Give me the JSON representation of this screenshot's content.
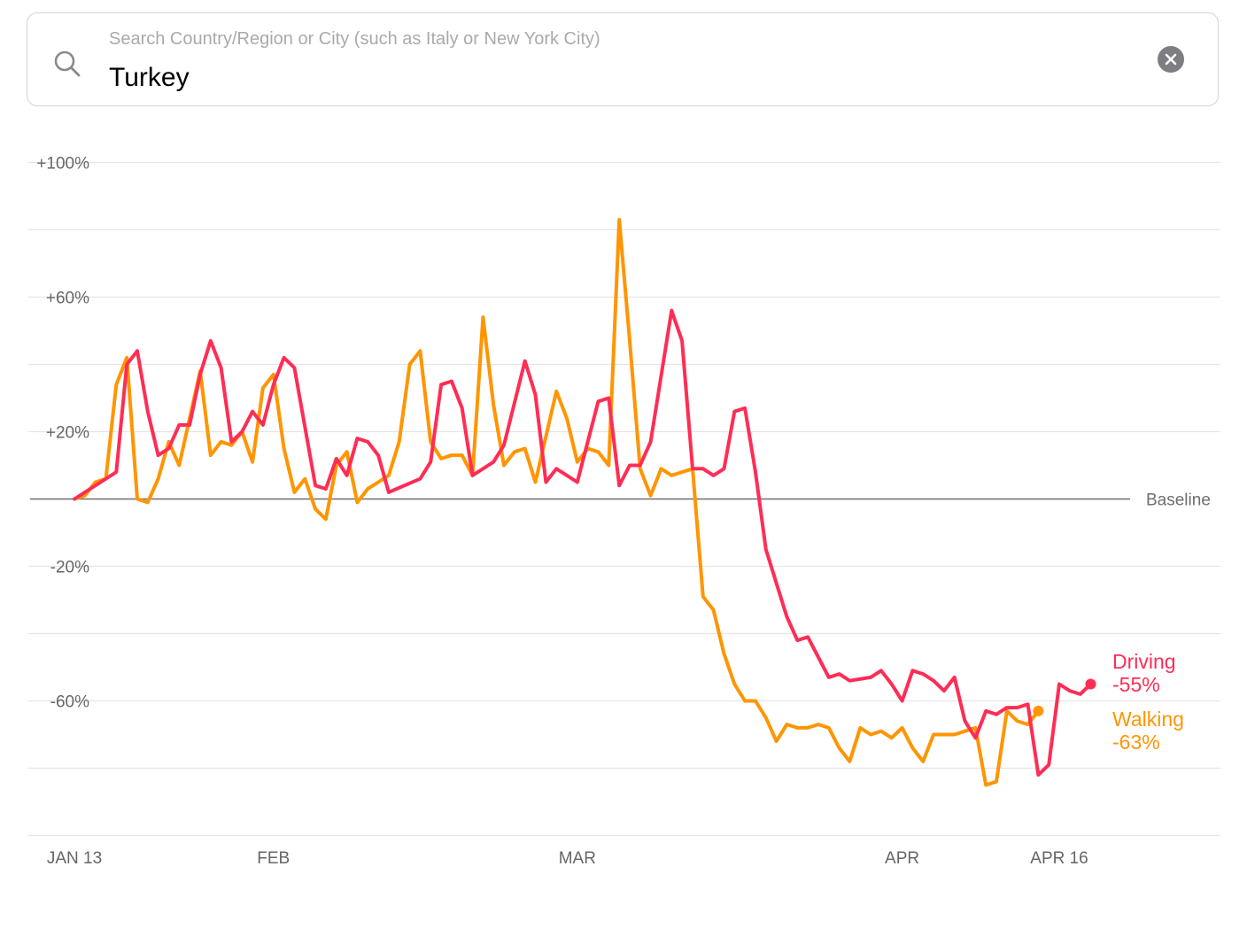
{
  "search": {
    "placeholder": "Search Country/Region or City (such as Italy or New York City)",
    "value": "Turkey"
  },
  "icons": {
    "search": "search-icon",
    "clear": "clear-icon"
  },
  "colors": {
    "driving": "#ff2d55",
    "walking": "#ff9500",
    "baseline": "#6e6e73",
    "grid": "#e5e5e5",
    "axis_text": "#666666"
  },
  "chart_data": {
    "type": "line",
    "x_start": "2020-01-13",
    "x_end": "2020-04-16",
    "x_tick_labels": [
      "JAN 13",
      "FEB",
      "MAR",
      "APR",
      "APR 16"
    ],
    "x_tick_dates": [
      "2020-01-13",
      "2020-02-01",
      "2020-03-01",
      "2020-04-01",
      "2020-04-16"
    ],
    "y_tick_labels": [
      "+100%",
      "+60%",
      "+20%",
      "-20%",
      "-60%"
    ],
    "y_tick_values": [
      100,
      60,
      20,
      -20,
      -60
    ],
    "y_gridlines": [
      100,
      80,
      60,
      40,
      20,
      -20,
      -40,
      -60,
      -80,
      -100
    ],
    "ylim": [
      -100,
      100
    ],
    "baseline": {
      "value": 0,
      "label": "Baseline"
    },
    "series": [
      {
        "name": "Driving",
        "end_label": "-55%",
        "points": [
          [
            0,
            0
          ],
          [
            4,
            8
          ],
          [
            5,
            40
          ],
          [
            6,
            44
          ],
          [
            7,
            26
          ],
          [
            8,
            13
          ],
          [
            9,
            15
          ],
          [
            10,
            22
          ],
          [
            11,
            22
          ],
          [
            12,
            37
          ],
          [
            13,
            47
          ],
          [
            14,
            39
          ],
          [
            15,
            17
          ],
          [
            16,
            20
          ],
          [
            17,
            26
          ],
          [
            18,
            22
          ],
          [
            19,
            34
          ],
          [
            20,
            42
          ],
          [
            21,
            39
          ],
          [
            23,
            4
          ],
          [
            24,
            3
          ],
          [
            25,
            12
          ],
          [
            26,
            7
          ],
          [
            27,
            18
          ],
          [
            28,
            17
          ],
          [
            29,
            13
          ],
          [
            30,
            2
          ],
          [
            33,
            6
          ],
          [
            34,
            11
          ],
          [
            35,
            34
          ],
          [
            36,
            35
          ],
          [
            37,
            27
          ],
          [
            38,
            7
          ],
          [
            40,
            11
          ],
          [
            41,
            16
          ],
          [
            43,
            41
          ],
          [
            44,
            31
          ],
          [
            45,
            5
          ],
          [
            46,
            9
          ],
          [
            48,
            5
          ],
          [
            50,
            29
          ],
          [
            51,
            30
          ],
          [
            52,
            4
          ],
          [
            53,
            10
          ],
          [
            54,
            10
          ],
          [
            55,
            17
          ],
          [
            57,
            56
          ],
          [
            58,
            47
          ],
          [
            59,
            9
          ],
          [
            60,
            9
          ],
          [
            61,
            7
          ],
          [
            62,
            9
          ],
          [
            63,
            26
          ],
          [
            64,
            27
          ],
          [
            65,
            8
          ],
          [
            66,
            -15
          ],
          [
            68,
            -35
          ],
          [
            69,
            -42
          ],
          [
            70,
            -41
          ],
          [
            72,
            -53
          ],
          [
            73,
            -52
          ],
          [
            74,
            -54
          ],
          [
            76,
            -53
          ],
          [
            77,
            -51
          ],
          [
            78,
            -55
          ],
          [
            79,
            -60
          ],
          [
            80,
            -51
          ],
          [
            81,
            -52
          ],
          [
            82,
            -54
          ],
          [
            83,
            -57
          ],
          [
            84,
            -53
          ],
          [
            85,
            -66
          ],
          [
            86,
            -71
          ],
          [
            87,
            -63
          ],
          [
            88,
            -64
          ],
          [
            89,
            -62
          ],
          [
            90,
            -62
          ],
          [
            91,
            -61
          ],
          [
            92,
            -82
          ],
          [
            93,
            -79
          ],
          [
            94,
            -55
          ],
          [
            95,
            -57
          ],
          [
            96,
            -58
          ],
          [
            97,
            -55
          ]
        ]
      },
      {
        "name": "Walking",
        "end_label": "-63%",
        "points": [
          [
            0,
            0
          ],
          [
            1,
            1
          ],
          [
            2,
            5
          ],
          [
            3,
            6
          ],
          [
            4,
            34
          ],
          [
            5,
            42
          ],
          [
            6,
            0
          ],
          [
            7,
            -1
          ],
          [
            8,
            6
          ],
          [
            9,
            17
          ],
          [
            10,
            10
          ],
          [
            12,
            38
          ],
          [
            13,
            13
          ],
          [
            14,
            17
          ],
          [
            15,
            16
          ],
          [
            16,
            20
          ],
          [
            17,
            11
          ],
          [
            18,
            33
          ],
          [
            19,
            37
          ],
          [
            20,
            15
          ],
          [
            21,
            2
          ],
          [
            22,
            6
          ],
          [
            23,
            -3
          ],
          [
            24,
            -6
          ],
          [
            25,
            10
          ],
          [
            26,
            14
          ],
          [
            27,
            -1
          ],
          [
            28,
            3
          ],
          [
            29,
            5
          ],
          [
            30,
            7
          ],
          [
            31,
            17
          ],
          [
            32,
            40
          ],
          [
            33,
            44
          ],
          [
            34,
            17
          ],
          [
            35,
            12
          ],
          [
            36,
            13
          ],
          [
            37,
            13
          ],
          [
            38,
            7
          ],
          [
            39,
            54
          ],
          [
            40,
            28
          ],
          [
            41,
            10
          ],
          [
            42,
            14
          ],
          [
            43,
            15
          ],
          [
            44,
            5
          ],
          [
            46,
            32
          ],
          [
            47,
            24
          ],
          [
            48,
            11
          ],
          [
            49,
            15
          ],
          [
            50,
            14
          ],
          [
            51,
            10
          ],
          [
            52,
            83
          ],
          [
            53,
            47
          ],
          [
            54,
            9
          ],
          [
            55,
            1
          ],
          [
            56,
            9
          ],
          [
            57,
            7
          ],
          [
            58,
            8
          ],
          [
            59,
            9
          ],
          [
            60,
            -29
          ],
          [
            61,
            -33
          ],
          [
            62,
            -46
          ],
          [
            63,
            -55
          ],
          [
            64,
            -60
          ],
          [
            65,
            -60
          ],
          [
            66,
            -65
          ],
          [
            67,
            -72
          ],
          [
            68,
            -67
          ],
          [
            69,
            -68
          ],
          [
            70,
            -68
          ],
          [
            71,
            -67
          ],
          [
            72,
            -68
          ],
          [
            73,
            -74
          ],
          [
            74,
            -78
          ],
          [
            75,
            -68
          ],
          [
            76,
            -70
          ],
          [
            77,
            -69
          ],
          [
            78,
            -71
          ],
          [
            79,
            -68
          ],
          [
            80,
            -74
          ],
          [
            81,
            -78
          ],
          [
            82,
            -70
          ],
          [
            83,
            -70
          ],
          [
            84,
            -70
          ],
          [
            85,
            -69
          ],
          [
            86,
            -68
          ],
          [
            87,
            -85
          ],
          [
            88,
            -84
          ],
          [
            89,
            -63
          ],
          [
            90,
            -66
          ],
          [
            91,
            -67
          ],
          [
            92,
            -63
          ]
        ]
      }
    ]
  }
}
